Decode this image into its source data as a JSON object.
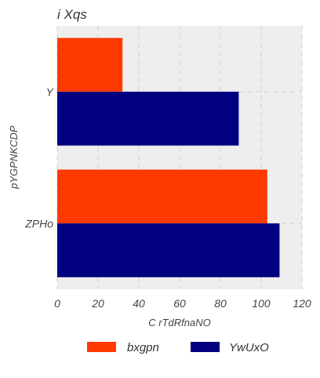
{
  "chart_data": {
    "type": "bar",
    "orientation": "horizontal",
    "title": "i Xqs",
    "xlabel": "C rTdRfnaNO",
    "ylabel": "pYGPNKCDP",
    "categories": [
      "Y",
      "ZPHo"
    ],
    "series": [
      {
        "name": "bxgpn",
        "values": [
          32,
          103
        ],
        "color": "#ff3a00"
      },
      {
        "name": "YwUxO",
        "values": [
          89,
          109
        ],
        "color": "#000080"
      }
    ],
    "xlim": [
      0,
      120
    ],
    "xticks": [
      "0",
      "20",
      "40",
      "60",
      "80",
      "100",
      "120"
    ],
    "grid": true,
    "legend_position": "bottom-center",
    "plot_background": "#eeeeee"
  }
}
